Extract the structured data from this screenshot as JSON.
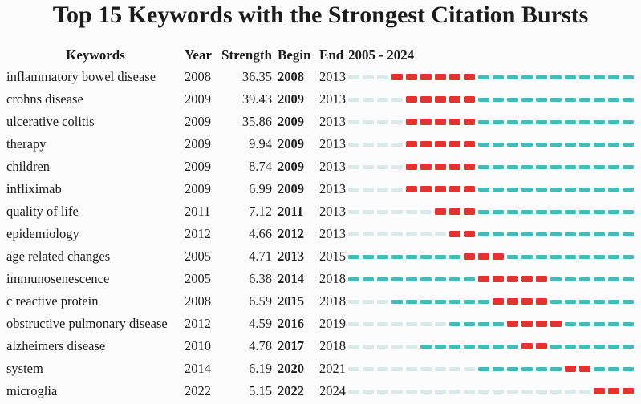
{
  "title": "Top 15 Keywords with the Strongest Citation Bursts",
  "colors": {
    "burst": "#e23330",
    "active": "#4cb7b8",
    "inactive": "#d9e8e8",
    "text": "#1c1c1c",
    "background": "#fcfcfc"
  },
  "header": {
    "keywords": "Keywords",
    "year": "Year",
    "strength": "Strength",
    "begin": "Begin",
    "end": "End",
    "timeline": "2005 - 2024"
  },
  "chart_data": {
    "type": "table",
    "title": "Top 15 Keywords with the Strongest Citation Bursts",
    "columns": [
      "Keywords",
      "Year",
      "Strength",
      "Begin",
      "End",
      "2005 - 2024"
    ],
    "timeline": {
      "start": 2005,
      "end": 2024,
      "label": "2005 - 2024"
    },
    "legend_colors": {
      "burst_period": "#e23330",
      "active_period": "#4cb7b8",
      "before_first_appearance": "#d9e8e8"
    },
    "rows": [
      {
        "keyword": "inflammatory bowel disease",
        "year": 2008,
        "strength": "36.35",
        "begin": 2008,
        "end": 2013
      },
      {
        "keyword": "crohns disease",
        "year": 2009,
        "strength": "39.43",
        "begin": 2009,
        "end": 2013
      },
      {
        "keyword": "ulcerative colitis",
        "year": 2009,
        "strength": "35.86",
        "begin": 2009,
        "end": 2013
      },
      {
        "keyword": "therapy",
        "year": 2009,
        "strength": "9.94",
        "begin": 2009,
        "end": 2013
      },
      {
        "keyword": "children",
        "year": 2009,
        "strength": "8.74",
        "begin": 2009,
        "end": 2013
      },
      {
        "keyword": "infliximab",
        "year": 2009,
        "strength": "6.99",
        "begin": 2009,
        "end": 2013
      },
      {
        "keyword": "quality of life",
        "year": 2011,
        "strength": "7.12",
        "begin": 2011,
        "end": 2013
      },
      {
        "keyword": "epidemiology",
        "year": 2012,
        "strength": "4.66",
        "begin": 2012,
        "end": 2013
      },
      {
        "keyword": "age related changes",
        "year": 2005,
        "strength": "4.71",
        "begin": 2013,
        "end": 2015
      },
      {
        "keyword": "immunosenescence",
        "year": 2005,
        "strength": "6.38",
        "begin": 2014,
        "end": 2018
      },
      {
        "keyword": "c reactive protein",
        "year": 2008,
        "strength": "6.59",
        "begin": 2015,
        "end": 2018
      },
      {
        "keyword": "obstructive pulmonary disease",
        "year": 2012,
        "strength": "4.59",
        "begin": 2016,
        "end": 2019
      },
      {
        "keyword": "alzheimers disease",
        "year": 2010,
        "strength": "4.78",
        "begin": 2017,
        "end": 2018
      },
      {
        "keyword": "system",
        "year": 2014,
        "strength": "6.19",
        "begin": 2020,
        "end": 2021
      },
      {
        "keyword": "microglia",
        "year": 2022,
        "strength": "5.15",
        "begin": 2022,
        "end": 2024
      }
    ]
  }
}
